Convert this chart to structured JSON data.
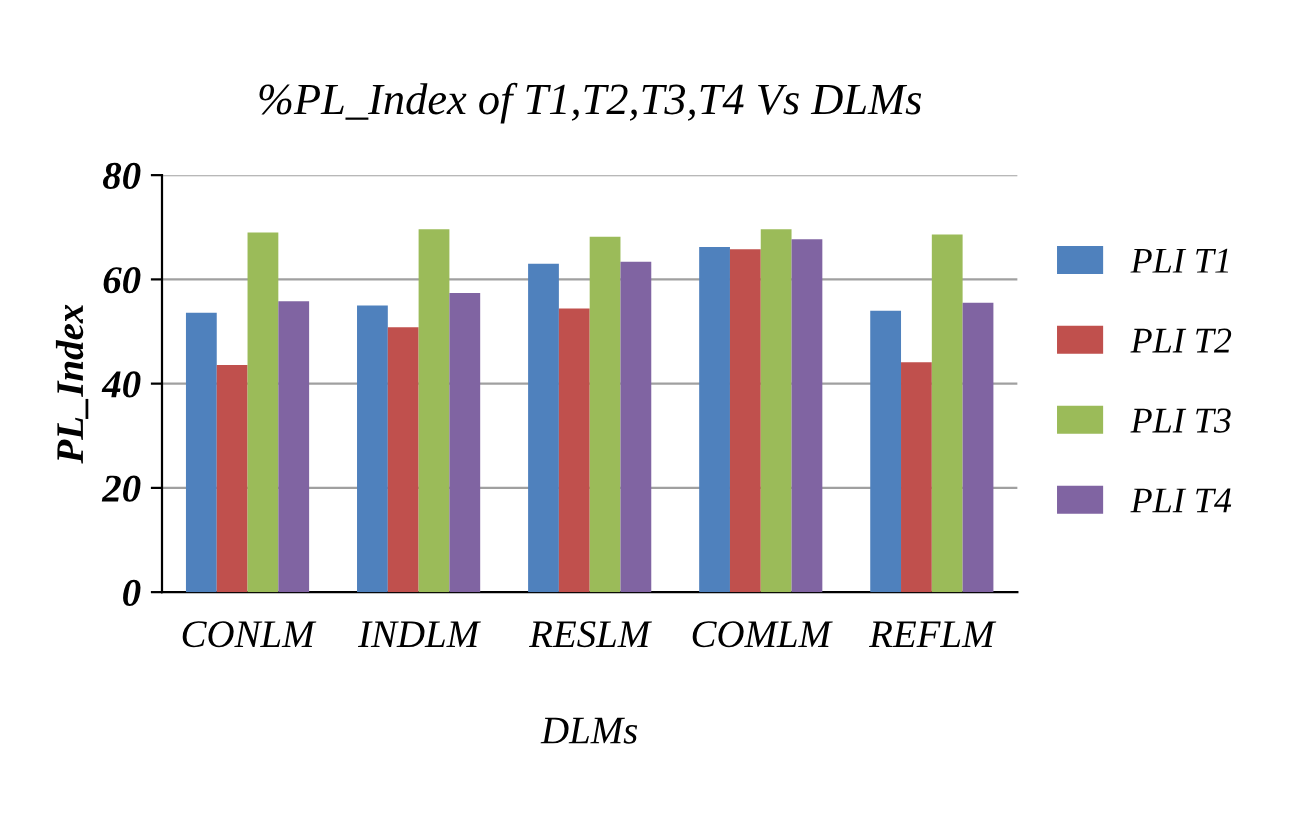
{
  "chart_data": {
    "type": "bar",
    "title": "%PL_Index of T1,T2,T3,T4 Vs DLMs",
    "xlabel": "DLMs",
    "ylabel": "PL_Index",
    "categories": [
      "CONLM",
      "INDLM",
      "RESLM",
      "COMLM",
      "REFLM"
    ],
    "series": [
      {
        "name": "PLI T1",
        "color": "#4f81bd",
        "values": [
          53.6,
          55.0,
          63.0,
          66.2,
          54.0
        ]
      },
      {
        "name": "PLI T2",
        "color": "#c0504d",
        "values": [
          43.6,
          50.8,
          54.4,
          65.8,
          44.1
        ]
      },
      {
        "name": "PLI T3",
        "color": "#9bbb59",
        "values": [
          69.0,
          69.6,
          68.2,
          69.6,
          68.6
        ]
      },
      {
        "name": "PLI T4",
        "color": "#8064a2",
        "values": [
          55.8,
          57.4,
          63.4,
          67.7,
          55.5
        ]
      }
    ],
    "ylim": [
      0,
      80
    ],
    "yticks": [
      0,
      20,
      40,
      60,
      80
    ],
    "grid": "y",
    "legend": "right"
  }
}
